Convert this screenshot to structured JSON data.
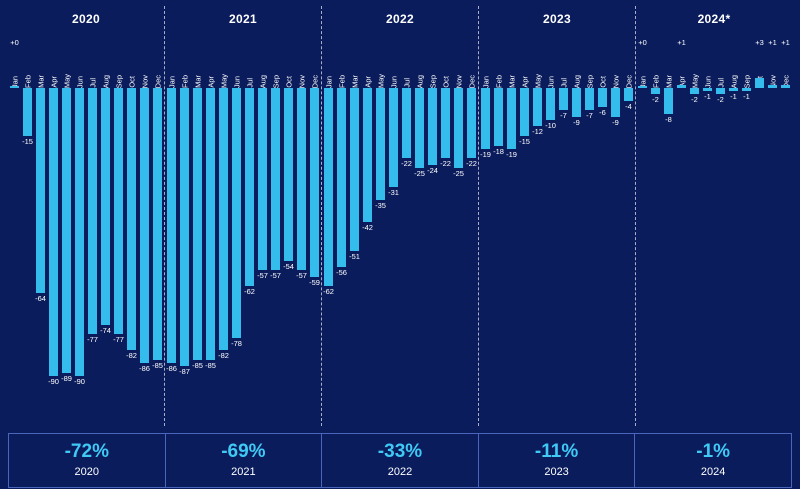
{
  "colors": {
    "background": "#0a1c5c",
    "bar": "#33bcec",
    "accent_text": "#3fc9f5",
    "table_border": "#4a66bb",
    "separator": "#ffffff"
  },
  "chart_data": {
    "type": "bar",
    "title": "",
    "ylim": [
      -95,
      5
    ],
    "grid": false,
    "months": [
      "Jan",
      "Feb",
      "Mar",
      "Apr",
      "May",
      "Jun",
      "Jul",
      "Aug",
      "Sep",
      "Oct",
      "Nov",
      "Dec"
    ],
    "years": [
      {
        "header": "2020",
        "values": [
          0,
          -15,
          -64,
          -90,
          -89,
          -90,
          -77,
          -74,
          -77,
          -82,
          -86,
          -85
        ],
        "labels": [
          "+0",
          "-15",
          "-64",
          "-90",
          "-89",
          "-90",
          "-77",
          "-74",
          "-77",
          "-82",
          "-86",
          "-85"
        ],
        "summary_pct": "-72%",
        "summary_year": "2020"
      },
      {
        "header": "2021",
        "values": [
          -86,
          -87,
          -85,
          -85,
          -82,
          -78,
          -62,
          -57,
          -57,
          -54,
          -57,
          -59
        ],
        "labels": [
          "-86",
          "-87",
          "-85",
          "-85",
          "-82",
          "-78",
          "-62",
          "-57",
          "-57",
          "-54",
          "-57",
          "-59"
        ],
        "summary_pct": "-69%",
        "summary_year": "2021"
      },
      {
        "header": "2022",
        "values": [
          -62,
          -56,
          -51,
          -42,
          -35,
          -31,
          -22,
          -25,
          -24,
          -22,
          -25,
          -22
        ],
        "labels": [
          "-62",
          "-56",
          "-51",
          "-42",
          "-35",
          "-31",
          "-22",
          "-25",
          "-24",
          "-22",
          "-25",
          "-22"
        ],
        "summary_pct": "-33%",
        "summary_year": "2022"
      },
      {
        "header": "2023",
        "values": [
          -19,
          -18,
          -19,
          -15,
          -12,
          -10,
          -7,
          -9,
          -7,
          -6,
          -9,
          -4
        ],
        "labels": [
          "-19",
          "-18",
          "-19",
          "-15",
          "-12",
          "-10",
          "-7",
          "-9",
          "-7",
          "-6",
          "-9",
          "-4"
        ],
        "summary_pct": "-11%",
        "summary_year": "2023"
      },
      {
        "header": "2024*",
        "values": [
          0,
          -2,
          -8,
          1,
          -2,
          -1,
          -2,
          -1,
          -1,
          3,
          1,
          1
        ],
        "labels": [
          "+0",
          "-2",
          "-8",
          "+1",
          "-2",
          "-1",
          "-2",
          "-1",
          "-1",
          "+3",
          "+1",
          "+1"
        ],
        "summary_pct": "-1%",
        "summary_year": "2024"
      }
    ]
  }
}
